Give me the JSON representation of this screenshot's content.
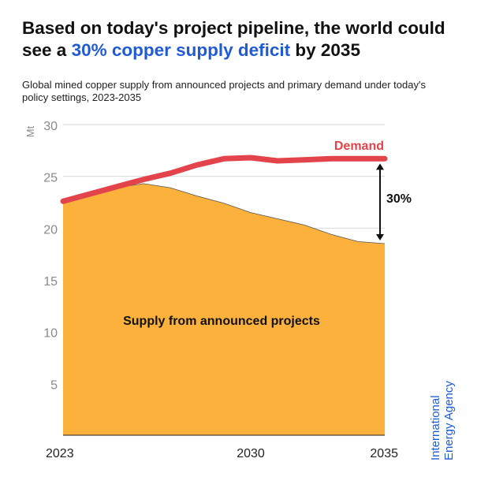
{
  "title": {
    "before": "Based on today's project pipeline, the world could see a ",
    "highlight": "30% copper supply deficit",
    "after": " by 2035"
  },
  "subtitle": "Global mined copper supply from announced projects and primary demand under today's policy settings, 2023-2035",
  "brand": "International Energy Agency",
  "colors": {
    "demand": "#e3434a",
    "supply": "#fbb13c",
    "highlight": "#1f5bd6",
    "grid": "#d9d9d9"
  },
  "chart_data": {
    "type": "area",
    "ylabel": "Mt",
    "ylim": [
      0,
      30
    ],
    "yticks": [
      5,
      10,
      15,
      20,
      25,
      30
    ],
    "xlim": [
      2023,
      2035
    ],
    "xticks": [
      "2023",
      "2030",
      "2035"
    ],
    "grid": "horizontal",
    "series": [
      {
        "name": "Demand",
        "type": "line",
        "x": [
          2023,
          2024,
          2025,
          2026,
          2027,
          2028,
          2029,
          2030,
          2031,
          2032,
          2033,
          2034,
          2035
        ],
        "values": [
          22.6,
          23.3,
          24.0,
          24.7,
          25.3,
          26.1,
          26.7,
          26.8,
          26.5,
          26.6,
          26.7,
          26.7,
          26.7
        ]
      },
      {
        "name": "Supply from announced projects",
        "type": "area",
        "x": [
          2023,
          2024,
          2025,
          2026,
          2027,
          2028,
          2029,
          2030,
          2031,
          2032,
          2033,
          2034,
          2035
        ],
        "values": [
          22.6,
          23.3,
          23.9,
          24.3,
          23.9,
          23.1,
          22.4,
          21.5,
          20.9,
          20.3,
          19.4,
          18.7,
          18.5
        ]
      }
    ],
    "annotations": [
      {
        "label": "Demand"
      },
      {
        "label": "Supply from announced projects"
      },
      {
        "label": "30%"
      }
    ]
  }
}
